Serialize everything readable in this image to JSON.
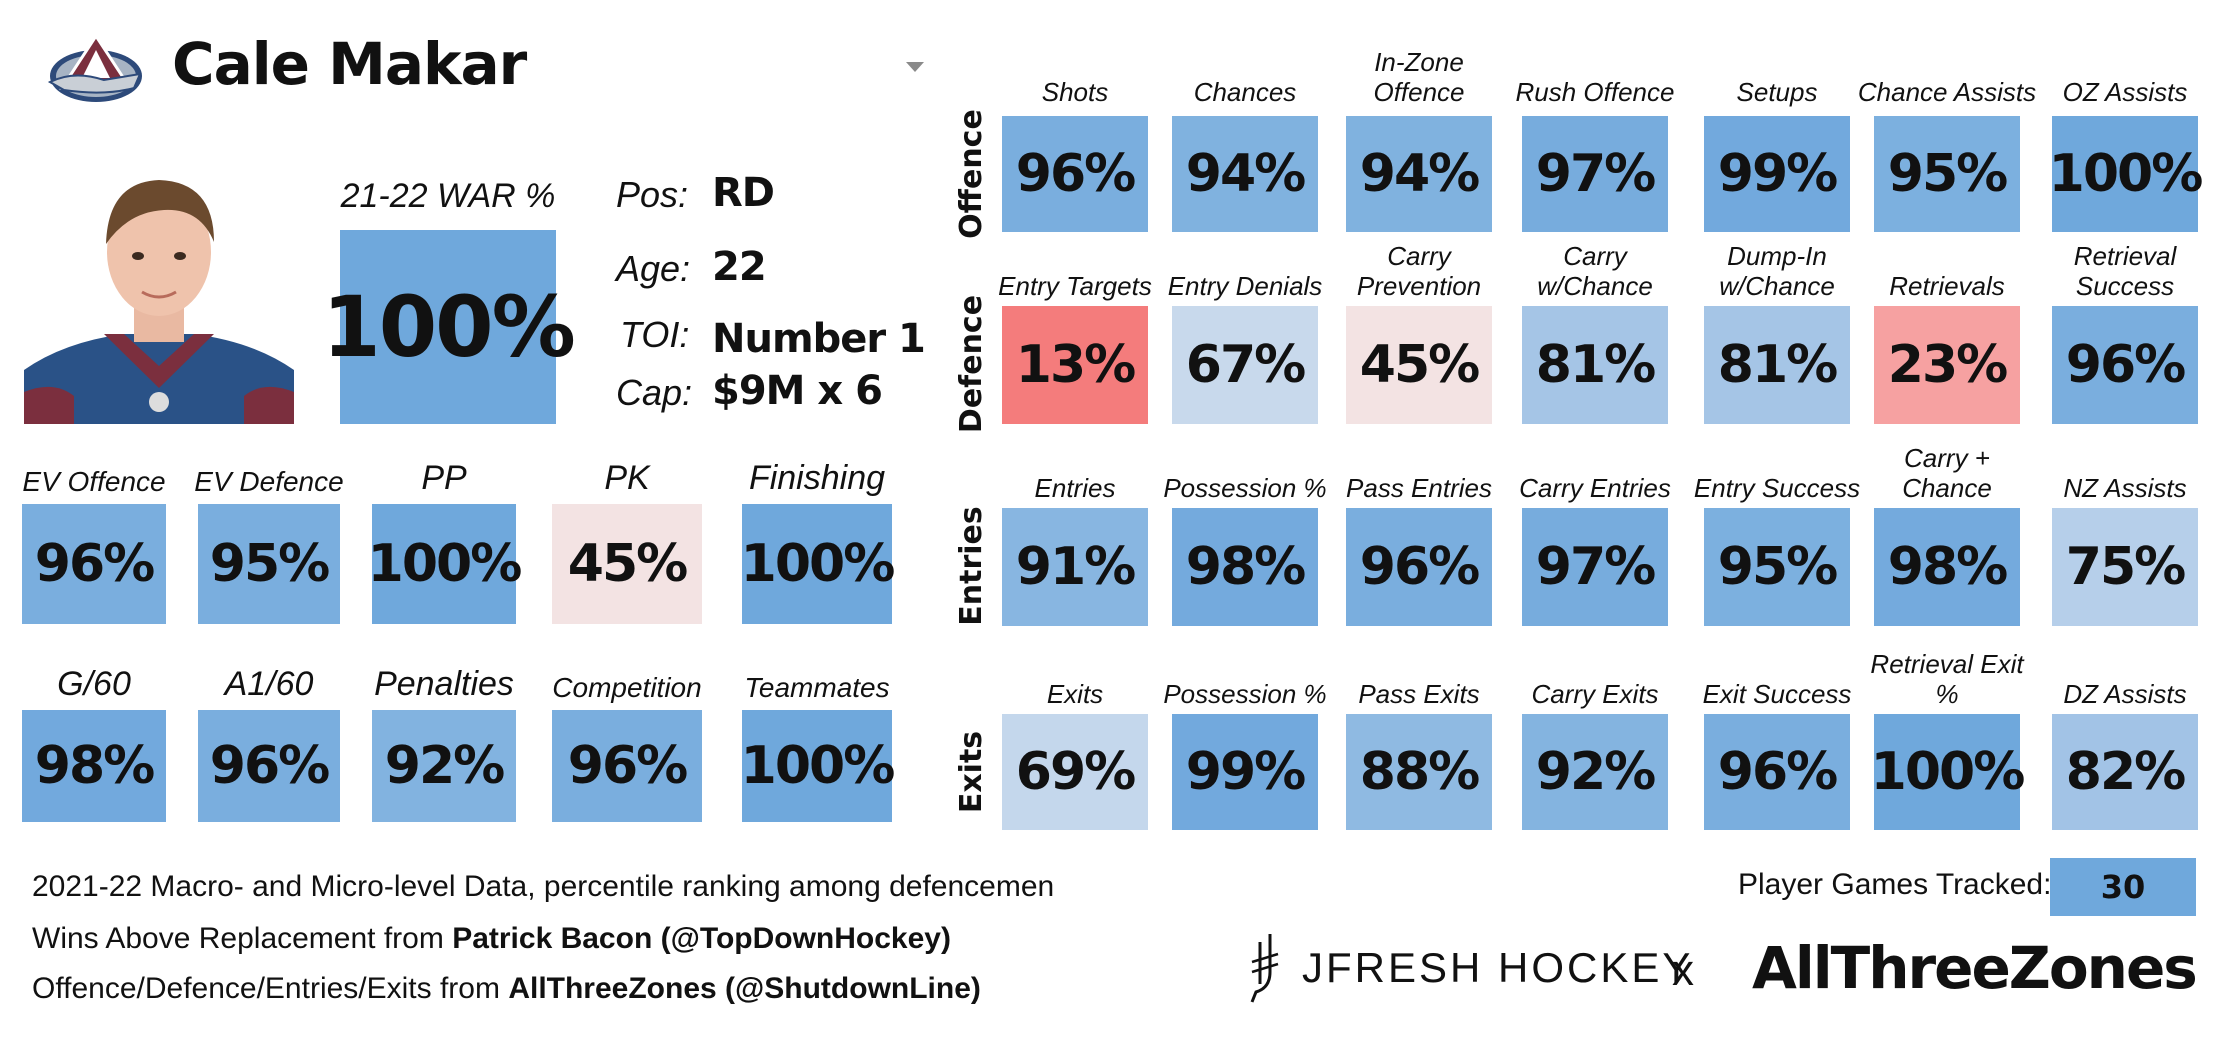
{
  "player": {
    "name": "Cale Makar",
    "war_label": "21-22 WAR %",
    "war_value": "100%",
    "info": [
      {
        "key": "Pos:",
        "value": "RD"
      },
      {
        "key": "Age:",
        "value": "22"
      },
      {
        "key": "TOI:",
        "value": "Number 1"
      },
      {
        "key": "Cap:",
        "value": "$9M x 6"
      }
    ]
  },
  "colors": {
    "dark_blue": "#6fa8dc",
    "mid_blue": "#86b5e0",
    "light_blue": "#a9c8e8",
    "pale_blue": "#c8d9ec",
    "pale_pink": "#f3e3e3",
    "light_red": "#f6a1a1",
    "red": "#f47c7c"
  },
  "left_grid": [
    [
      {
        "label": "EV Offence",
        "value": "96%",
        "color": "#7aaede"
      },
      {
        "label": "EV Defence",
        "value": "95%",
        "color": "#7aaede"
      },
      {
        "label": "PP",
        "value": "100%",
        "color": "#6fa8dc"
      },
      {
        "label": "PK",
        "value": "45%",
        "color": "#f3e3e3"
      },
      {
        "label": "Finishing",
        "value": "100%",
        "color": "#6fa8dc"
      }
    ],
    [
      {
        "label": "G/60",
        "value": "98%",
        "color": "#72a9dd"
      },
      {
        "label": "A1/60",
        "value": "96%",
        "color": "#7aaede"
      },
      {
        "label": "Penalties",
        "value": "92%",
        "color": "#82b3e0"
      },
      {
        "label": "Competition",
        "value": "96%",
        "color": "#7aaede"
      },
      {
        "label": "Teammates",
        "value": "100%",
        "color": "#6fa8dc"
      }
    ]
  ],
  "right_grid": [
    {
      "row_label": "Offence",
      "cells": [
        {
          "label": "Shots",
          "value": "96%",
          "color": "#7aaede"
        },
        {
          "label": "Chances",
          "value": "94%",
          "color": "#80b2df"
        },
        {
          "label": "In-Zone Offence",
          "value": "94%",
          "color": "#80b2df"
        },
        {
          "label": "Rush Offence",
          "value": "97%",
          "color": "#77acdd"
        },
        {
          "label": "Setups",
          "value": "99%",
          "color": "#72a9dd"
        },
        {
          "label": "Chance Assists",
          "value": "95%",
          "color": "#7cb0df"
        },
        {
          "label": "OZ Assists",
          "value": "100%",
          "color": "#6fa8dc"
        }
      ]
    },
    {
      "row_label": "Defence",
      "cells": [
        {
          "label": "Entry Targets",
          "value": "13%",
          "color": "#f47c7c"
        },
        {
          "label": "Entry Denials",
          "value": "67%",
          "color": "#c8d9ec"
        },
        {
          "label": "Carry Prevention",
          "value": "45%",
          "color": "#f3e3e3"
        },
        {
          "label": "Carry w/Chance",
          "value": "81%",
          "color": "#a5c5e6"
        },
        {
          "label": "Dump-In w/Chance",
          "value": "81%",
          "color": "#a5c5e6"
        },
        {
          "label": "Retrievals",
          "value": "23%",
          "color": "#f6a1a1"
        },
        {
          "label": "Retrieval Success",
          "value": "96%",
          "color": "#7aaede"
        }
      ]
    },
    {
      "row_label": "Entries",
      "cells": [
        {
          "label": "Entries",
          "value": "91%",
          "color": "#88b6e1"
        },
        {
          "label": "Possession %",
          "value": "98%",
          "color": "#74aadd"
        },
        {
          "label": "Pass Entries",
          "value": "96%",
          "color": "#7aaede"
        },
        {
          "label": "Carry Entries",
          "value": "97%",
          "color": "#77acdd"
        },
        {
          "label": "Entry Success",
          "value": "95%",
          "color": "#7cb0df"
        },
        {
          "label": "Carry + Chance",
          "value": "98%",
          "color": "#74aadd"
        },
        {
          "label": "NZ Assists",
          "value": "75%",
          "color": "#b6cfea"
        }
      ]
    },
    {
      "row_label": "Exits",
      "cells": [
        {
          "label": "Exits",
          "value": "69%",
          "color": "#c4d7ec"
        },
        {
          "label": "Possession %",
          "value": "99%",
          "color": "#72a9dd"
        },
        {
          "label": "Pass Exits",
          "value": "88%",
          "color": "#8fbae2"
        },
        {
          "label": "Carry Exits",
          "value": "92%",
          "color": "#84b4e0"
        },
        {
          "label": "Exit Success",
          "value": "96%",
          "color": "#7aaede"
        },
        {
          "label": "Retrieval Exit %",
          "value": "100%",
          "color": "#6fa8dc"
        },
        {
          "label": "DZ Assists",
          "value": "82%",
          "color": "#a2c3e6"
        }
      ]
    }
  ],
  "footer": {
    "line1": "2021-22 Macro- and Micro-level Data, percentile ranking among defencemen",
    "line2_prefix": "Wins Above Replacement from ",
    "line2_bold": "Patrick Bacon (@TopDownHockey)",
    "line3_prefix": "Offence/Defence/Entries/Exits from ",
    "line3_bold": "AllThreeZones (@ShutdownLine)",
    "games_label": "Player Games Tracked:",
    "games_value": "30",
    "brand_jfresh": "JFRESH HOCKEY",
    "brand_x": "x",
    "brand_atz": "AllThreeZones"
  }
}
